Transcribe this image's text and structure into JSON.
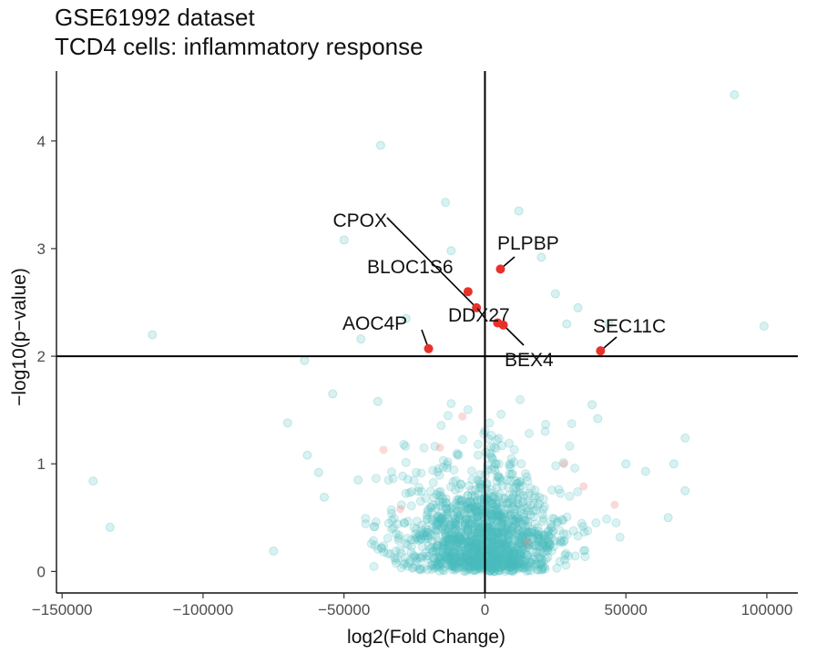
{
  "chart_data": {
    "type": "scatter",
    "title": "GSE61992 dataset",
    "subtitle": "TCD4 cells: inflammatory response",
    "xlabel": "log2(Fold Change)",
    "ylabel": "−log10(p−value)",
    "xlim": [
      -152000,
      111000
    ],
    "ylim": [
      -0.2,
      4.65
    ],
    "x_ticks": [
      -150000,
      -100000,
      -50000,
      0,
      50000,
      100000
    ],
    "x_tick_labels": [
      "−150000",
      "−100000",
      "−50000",
      "0",
      "50000",
      "100000"
    ],
    "y_ticks": [
      0,
      1,
      2,
      3,
      4
    ],
    "y_tick_labels": [
      "0",
      "1",
      "2",
      "3",
      "4"
    ],
    "grid": false,
    "threshold_lines": {
      "x": 0,
      "y": 2
    },
    "colors": {
      "background_points": "#4dbdc0",
      "highlight_points": "#e8312a",
      "faint_highlight": "#f08080"
    },
    "highlighted_genes": [
      {
        "name": "CPOX",
        "x": -3000,
        "y": 2.45
      },
      {
        "name": "BLOC1S6",
        "x": -6000,
        "y": 2.6
      },
      {
        "name": "PLPBP",
        "x": 5500,
        "y": 2.81
      },
      {
        "name": "DDX27",
        "x": 4500,
        "y": 2.31
      },
      {
        "name": "BEX4",
        "x": 6500,
        "y": 2.29
      },
      {
        "name": "AOC4P",
        "x": -20000,
        "y": 2.07
      },
      {
        "name": "SEC11C",
        "x": 41000,
        "y": 2.05
      }
    ],
    "outlier_points": [
      {
        "x": 88500,
        "y": 4.43
      },
      {
        "x": -37000,
        "y": 3.96
      },
      {
        "x": -14000,
        "y": 3.43
      },
      {
        "x": 12000,
        "y": 3.35
      },
      {
        "x": -50000,
        "y": 3.08
      },
      {
        "x": -118000,
        "y": 2.2
      },
      {
        "x": 99000,
        "y": 2.28
      },
      {
        "x": -139000,
        "y": 0.84
      },
      {
        "x": -133000,
        "y": 0.41
      },
      {
        "x": -75000,
        "y": 0.19
      },
      {
        "x": -70000,
        "y": 1.38
      },
      {
        "x": -63000,
        "y": 1.08
      },
      {
        "x": -64000,
        "y": 1.96
      },
      {
        "x": -54000,
        "y": 1.65
      },
      {
        "x": -44000,
        "y": 2.16
      },
      {
        "x": -28000,
        "y": 2.35
      },
      {
        "x": 33000,
        "y": 2.45
      },
      {
        "x": 29000,
        "y": 2.3
      },
      {
        "x": 44000,
        "y": 2.3
      },
      {
        "x": 71000,
        "y": 1.24
      },
      {
        "x": 67000,
        "y": 1.0
      },
      {
        "x": 71000,
        "y": 0.75
      },
      {
        "x": 57000,
        "y": 0.93
      },
      {
        "x": 65000,
        "y": 0.5
      },
      {
        "x": -59000,
        "y": 0.92
      },
      {
        "x": -57000,
        "y": 0.69
      },
      {
        "x": -45000,
        "y": 0.85
      },
      {
        "x": 50000,
        "y": 1.0
      },
      {
        "x": 38000,
        "y": 1.55
      },
      {
        "x": 40000,
        "y": 1.42
      },
      {
        "x": -38000,
        "y": 1.58
      },
      {
        "x": 25000,
        "y": 2.58
      },
      {
        "x": 20000,
        "y": 2.92
      },
      {
        "x": -12000,
        "y": 2.98
      }
    ],
    "faint_highlight_points": [
      {
        "x": -36000,
        "y": 1.13
      },
      {
        "x": -16000,
        "y": 1.15
      },
      {
        "x": 28000,
        "y": 1.0
      },
      {
        "x": 35000,
        "y": 0.79
      },
      {
        "x": 46000,
        "y": 0.62
      },
      {
        "x": -8000,
        "y": 1.44
      },
      {
        "x": -30000,
        "y": 0.58
      },
      {
        "x": 15000,
        "y": 0.27
      }
    ]
  }
}
